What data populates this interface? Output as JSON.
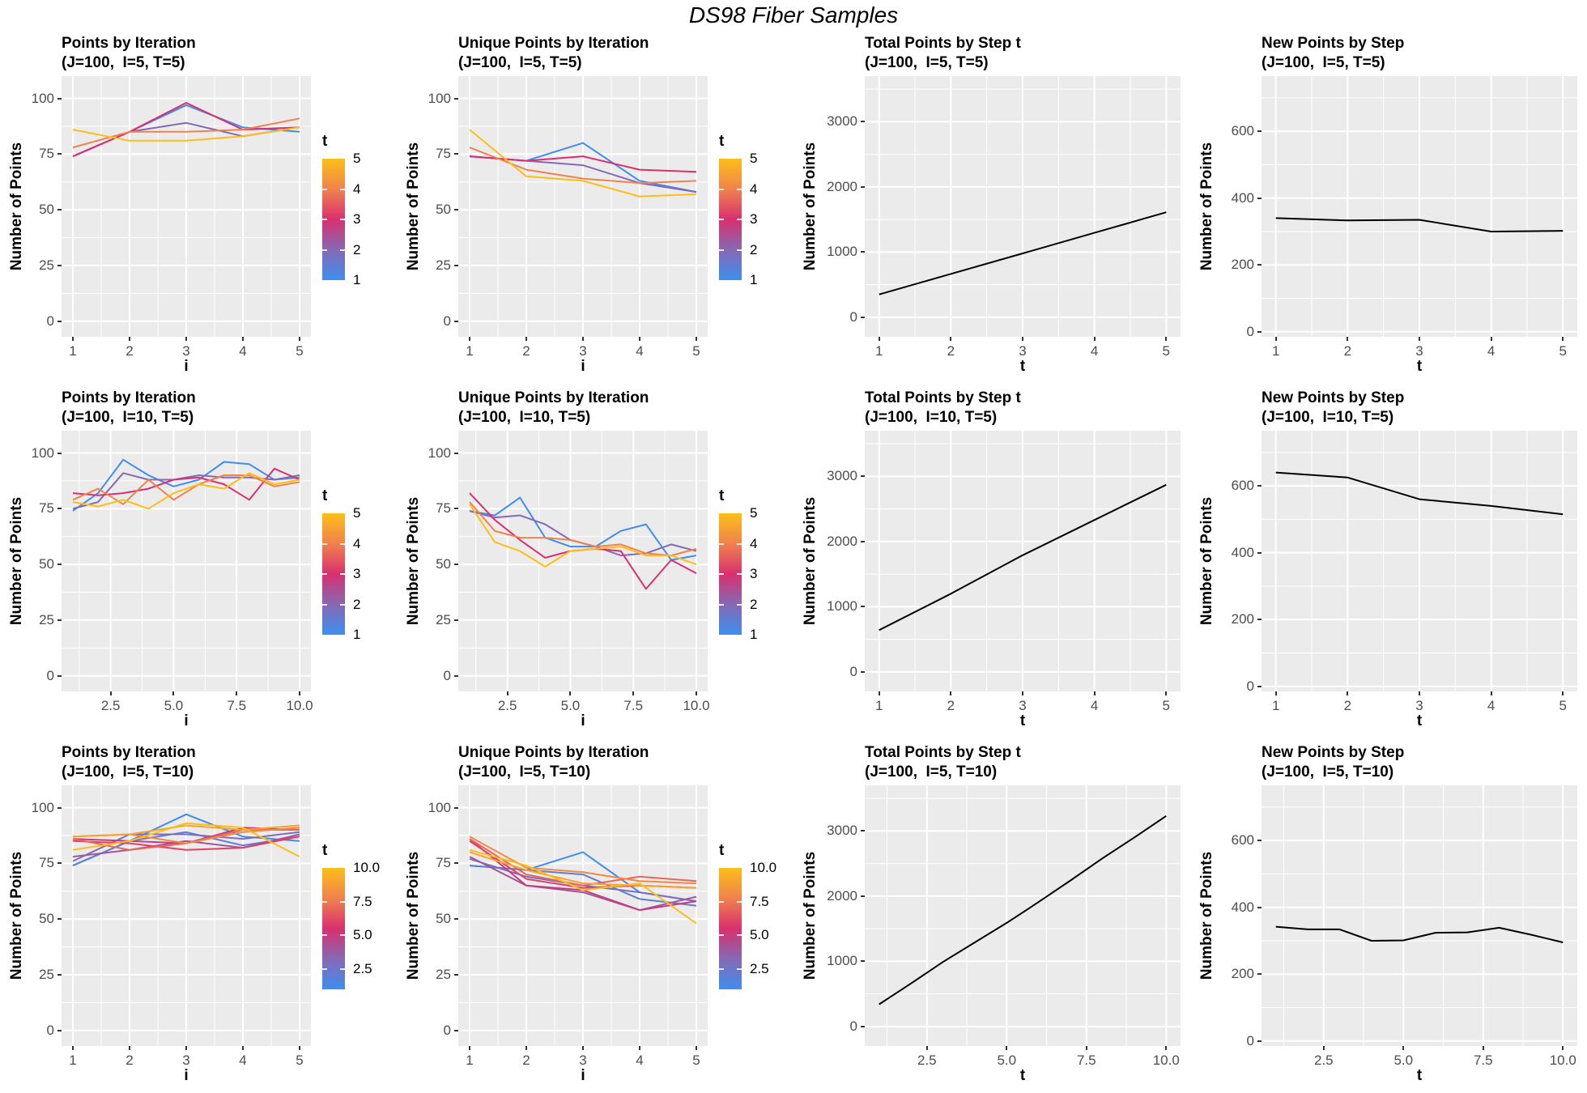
{
  "title": "DS98 Fiber Samples",
  "colors": {
    "panel_bg": "#EBEBEB",
    "grid": "#FFFFFF",
    "axis_text": "#4D4D4D",
    "tick_mark": "#333333",
    "black_line": "#000000",
    "gradient_stops": [
      "#3E8EF0",
      "#8569B4",
      "#D9306F",
      "#F0824D",
      "#FDBE18"
    ]
  },
  "chart_data": [
    {
      "type": "line",
      "title": "Points by Iteration",
      "subtitle": "(J=100,  I=5, T=5)",
      "xlabel": "i",
      "ylabel": "Number of Points",
      "x": [
        1,
        2,
        3,
        4,
        5
      ],
      "x_ticks": [
        1,
        2,
        3,
        4,
        5
      ],
      "x_tick_labels": [
        "1",
        "2",
        "3",
        "4",
        "5"
      ],
      "x_domain": [
        0.8,
        5.2
      ],
      "y_ticks": [
        0,
        25,
        50,
        75,
        100
      ],
      "y_tick_labels": [
        "0",
        "25",
        "50",
        "75",
        "100"
      ],
      "y_domain": [
        -7,
        110
      ],
      "legend": {
        "title": "t",
        "min": 1,
        "max": 5,
        "breaks": [
          1,
          2,
          3,
          4,
          5
        ],
        "labels": [
          "1",
          "2",
          "3",
          "4",
          "5"
        ]
      },
      "series": [
        {
          "t": 1,
          "values": [
            74,
            85,
            97,
            87,
            85
          ]
        },
        {
          "t": 2,
          "values": [
            74,
            85,
            89,
            83,
            87
          ]
        },
        {
          "t": 3,
          "values": [
            74,
            85,
            98,
            86,
            87
          ]
        },
        {
          "t": 4,
          "values": [
            78,
            85,
            85,
            86,
            91
          ]
        },
        {
          "t": 5,
          "values": [
            86,
            81,
            81,
            83,
            87
          ]
        }
      ]
    },
    {
      "type": "line",
      "title": "Unique Points by Iteration",
      "subtitle": "(J=100,  I=5, T=5)",
      "xlabel": "i",
      "ylabel": "Number of Points",
      "x": [
        1,
        2,
        3,
        4,
        5
      ],
      "x_ticks": [
        1,
        2,
        3,
        4,
        5
      ],
      "x_tick_labels": [
        "1",
        "2",
        "3",
        "4",
        "5"
      ],
      "x_domain": [
        0.8,
        5.2
      ],
      "y_ticks": [
        0,
        25,
        50,
        75,
        100
      ],
      "y_tick_labels": [
        "0",
        "25",
        "50",
        "75",
        "100"
      ],
      "y_domain": [
        -7,
        110
      ],
      "legend": {
        "title": "t",
        "min": 1,
        "max": 5,
        "breaks": [
          1,
          2,
          3,
          4,
          5
        ],
        "labels": [
          "1",
          "2",
          "3",
          "4",
          "5"
        ]
      },
      "series": [
        {
          "t": 1,
          "values": [
            74,
            72,
            80,
            63,
            58
          ]
        },
        {
          "t": 2,
          "values": [
            74,
            72,
            70,
            62,
            58
          ]
        },
        {
          "t": 3,
          "values": [
            74,
            72,
            74,
            68,
            67
          ]
        },
        {
          "t": 4,
          "values": [
            78,
            68,
            64,
            62,
            63
          ]
        },
        {
          "t": 5,
          "values": [
            86,
            65,
            63,
            56,
            57
          ]
        }
      ]
    },
    {
      "type": "line",
      "title": "Total Points by Step t",
      "subtitle": "(J=100,  I=5, T=5)",
      "xlabel": "t",
      "ylabel": "Number of Points",
      "x": [
        1,
        2,
        3,
        4,
        5
      ],
      "x_ticks": [
        1,
        2,
        3,
        4,
        5
      ],
      "x_tick_labels": [
        "1",
        "2",
        "3",
        "4",
        "5"
      ],
      "x_domain": [
        0.8,
        5.2
      ],
      "y_ticks": [
        0,
        1000,
        2000,
        3000
      ],
      "y_tick_labels": [
        "0",
        "1000",
        "2000",
        "3000"
      ],
      "y_domain": [
        -300,
        3700
      ],
      "legend": null,
      "series": [
        {
          "t": null,
          "values": [
            350,
            665,
            980,
            1295,
            1610
          ]
        }
      ]
    },
    {
      "type": "line",
      "title": "New Points by Step",
      "subtitle": "(J=100,  I=5, T=5)",
      "xlabel": "t",
      "ylabel": "Number of Points",
      "x": [
        1,
        2,
        3,
        4,
        5
      ],
      "x_ticks": [
        1,
        2,
        3,
        4,
        5
      ],
      "x_tick_labels": [
        "1",
        "2",
        "3",
        "4",
        "5"
      ],
      "x_domain": [
        0.8,
        5.2
      ],
      "y_ticks": [
        0,
        200,
        400,
        600
      ],
      "y_tick_labels": [
        "0",
        "200",
        "400",
        "600"
      ],
      "y_domain": [
        -15,
        765
      ],
      "legend": null,
      "series": [
        {
          "t": null,
          "values": [
            340,
            333,
            335,
            300,
            302
          ]
        }
      ]
    },
    {
      "type": "line",
      "title": "Points by Iteration",
      "subtitle": "(J=100,  I=10, T=5)",
      "xlabel": "i",
      "ylabel": "Number of Points",
      "x": [
        1,
        2,
        3,
        4,
        5,
        6,
        7,
        8,
        9,
        10
      ],
      "x_ticks": [
        2.5,
        5,
        7.5,
        10
      ],
      "x_tick_labels": [
        "2.5",
        "5.0",
        "7.5",
        "10.0"
      ],
      "x_domain": [
        0.55,
        10.45
      ],
      "y_ticks": [
        0,
        25,
        50,
        75,
        100
      ],
      "y_tick_labels": [
        "0",
        "25",
        "50",
        "75",
        "100"
      ],
      "y_domain": [
        -7,
        110
      ],
      "legend": {
        "title": "t",
        "min": 1,
        "max": 5,
        "breaks": [
          1,
          2,
          3,
          4,
          5
        ],
        "labels": [
          "1",
          "2",
          "3",
          "4",
          "5"
        ]
      },
      "series": [
        {
          "t": 1,
          "values": [
            74,
            82,
            97,
            90,
            85,
            88,
            96,
            95,
            88,
            89
          ]
        },
        {
          "t": 2,
          "values": [
            75,
            78,
            91,
            88,
            88,
            90,
            89,
            89,
            88,
            90
          ]
        },
        {
          "t": 3,
          "values": [
            82,
            81,
            82,
            84,
            88,
            89,
            86,
            79,
            93,
            88
          ]
        },
        {
          "t": 4,
          "values": [
            79,
            84,
            77,
            88,
            79,
            86,
            90,
            90,
            85,
            87
          ]
        },
        {
          "t": 5,
          "values": [
            78,
            76,
            79,
            75,
            82,
            86,
            84,
            91,
            86,
            88
          ]
        }
      ]
    },
    {
      "type": "line",
      "title": "Unique Points by Iteration",
      "subtitle": "(J=100,  I=10, T=5)",
      "xlabel": "i",
      "ylabel": "Number of Points",
      "x": [
        1,
        2,
        3,
        4,
        5,
        6,
        7,
        8,
        9,
        10
      ],
      "x_ticks": [
        2.5,
        5,
        7.5,
        10
      ],
      "x_tick_labels": [
        "2.5",
        "5.0",
        "7.5",
        "10.0"
      ],
      "x_domain": [
        0.55,
        10.45
      ],
      "y_ticks": [
        0,
        25,
        50,
        75,
        100
      ],
      "y_tick_labels": [
        "0",
        "25",
        "50",
        "75",
        "100"
      ],
      "y_domain": [
        -7,
        110
      ],
      "legend": {
        "title": "t",
        "min": 1,
        "max": 5,
        "breaks": [
          1,
          2,
          3,
          4,
          5
        ],
        "labels": [
          "1",
          "2",
          "3",
          "4",
          "5"
        ]
      },
      "series": [
        {
          "t": 1,
          "values": [
            74,
            72,
            80,
            62,
            58,
            58,
            65,
            68,
            52,
            54
          ]
        },
        {
          "t": 2,
          "values": [
            74,
            71,
            72,
            68,
            61,
            58,
            54,
            55,
            59,
            56
          ]
        },
        {
          "t": 3,
          "values": [
            82,
            70,
            61,
            53,
            56,
            57,
            56,
            39,
            52,
            46
          ]
        },
        {
          "t": 4,
          "values": [
            78,
            65,
            62,
            62,
            61,
            58,
            59,
            55,
            54,
            57
          ]
        },
        {
          "t": 5,
          "values": [
            77,
            60,
            56,
            49,
            56,
            57,
            58,
            54,
            54,
            50
          ]
        }
      ]
    },
    {
      "type": "line",
      "title": "Total Points by Step t",
      "subtitle": "(J=100,  I=10, T=5)",
      "xlabel": "t",
      "ylabel": "Number of Points",
      "x": [
        1,
        2,
        3,
        4,
        5
      ],
      "x_ticks": [
        1,
        2,
        3,
        4,
        5
      ],
      "x_tick_labels": [
        "1",
        "2",
        "3",
        "4",
        "5"
      ],
      "x_domain": [
        0.8,
        5.2
      ],
      "y_ticks": [
        0,
        1000,
        2000,
        3000
      ],
      "y_tick_labels": [
        "0",
        "1000",
        "2000",
        "3000"
      ],
      "y_domain": [
        -300,
        3700
      ],
      "legend": null,
      "series": [
        {
          "t": null,
          "values": [
            640,
            1200,
            1790,
            2330,
            2870
          ]
        }
      ]
    },
    {
      "type": "line",
      "title": "New Points by Step",
      "subtitle": "(J=100,  I=10, T=5)",
      "xlabel": "t",
      "ylabel": "Number of Points",
      "x": [
        1,
        2,
        3,
        4,
        5
      ],
      "x_ticks": [
        1,
        2,
        3,
        4,
        5
      ],
      "x_tick_labels": [
        "1",
        "2",
        "3",
        "4",
        "5"
      ],
      "x_domain": [
        0.8,
        5.2
      ],
      "y_ticks": [
        0,
        200,
        400,
        600
      ],
      "y_tick_labels": [
        "0",
        "200",
        "400",
        "600"
      ],
      "y_domain": [
        -15,
        765
      ],
      "legend": null,
      "series": [
        {
          "t": null,
          "values": [
            640,
            625,
            560,
            540,
            515
          ]
        }
      ]
    },
    {
      "type": "line",
      "title": "Points by Iteration",
      "subtitle": "(J=100,  I=5, T=10)",
      "xlabel": "i",
      "ylabel": "Number of Points",
      "x": [
        1,
        2,
        3,
        4,
        5
      ],
      "x_ticks": [
        1,
        2,
        3,
        4,
        5
      ],
      "x_tick_labels": [
        "1",
        "2",
        "3",
        "4",
        "5"
      ],
      "x_domain": [
        0.8,
        5.2
      ],
      "y_ticks": [
        0,
        25,
        50,
        75,
        100
      ],
      "y_tick_labels": [
        "0",
        "25",
        "50",
        "75",
        "100"
      ],
      "y_domain": [
        -7,
        110
      ],
      "legend": {
        "title": "t",
        "min": 1,
        "max": 10,
        "breaks": [
          2.5,
          5,
          7.5,
          10
        ],
        "labels": [
          "2.5",
          "5.0",
          "7.5",
          "10.0"
        ]
      },
      "series": [
        {
          "t": 1,
          "values": [
            74,
            85,
            97,
            87,
            85
          ]
        },
        {
          "t": 2,
          "values": [
            74,
            85,
            89,
            83,
            87
          ]
        },
        {
          "t": 3,
          "values": [
            76,
            88,
            88,
            86,
            89
          ]
        },
        {
          "t": 4,
          "values": [
            78,
            81,
            85,
            82,
            88
          ]
        },
        {
          "t": 5,
          "values": [
            86,
            85,
            84,
            91,
            90
          ]
        },
        {
          "t": 6,
          "values": [
            85,
            84,
            81,
            82,
            87
          ]
        },
        {
          "t": 7,
          "values": [
            86,
            81,
            84,
            90,
            90
          ]
        },
        {
          "t": 8,
          "values": [
            87,
            88,
            84,
            89,
            91
          ]
        },
        {
          "t": 9,
          "values": [
            87,
            88,
            92,
            90,
            92
          ]
        },
        {
          "t": 10,
          "values": [
            81,
            85,
            93,
            91,
            78
          ]
        }
      ]
    },
    {
      "type": "line",
      "title": "Unique Points by Iteration",
      "subtitle": "(J=100,  I=5, T=10)",
      "xlabel": "i",
      "ylabel": "Number of Points",
      "x": [
        1,
        2,
        3,
        4,
        5
      ],
      "x_ticks": [
        1,
        2,
        3,
        4,
        5
      ],
      "x_tick_labels": [
        "1",
        "2",
        "3",
        "4",
        "5"
      ],
      "x_domain": [
        0.8,
        5.2
      ],
      "y_ticks": [
        0,
        25,
        50,
        75,
        100
      ],
      "y_tick_labels": [
        "0",
        "25",
        "50",
        "75",
        "100"
      ],
      "y_domain": [
        -7,
        110
      ],
      "legend": {
        "title": "t",
        "min": 1,
        "max": 10,
        "breaks": [
          2.5,
          5,
          7.5,
          10
        ],
        "labels": [
          "2.5",
          "5.0",
          "7.5",
          "10.0"
        ]
      },
      "series": [
        {
          "t": 1,
          "values": [
            74,
            72,
            80,
            62,
            58
          ]
        },
        {
          "t": 2,
          "values": [
            74,
            72,
            70,
            59,
            56
          ]
        },
        {
          "t": 3,
          "values": [
            77,
            69,
            65,
            62,
            58
          ]
        },
        {
          "t": 4,
          "values": [
            78,
            65,
            62,
            54,
            60
          ]
        },
        {
          "t": 5,
          "values": [
            86,
            65,
            63,
            54,
            58
          ]
        },
        {
          "t": 6,
          "values": [
            85,
            68,
            64,
            65,
            64
          ]
        },
        {
          "t": 7,
          "values": [
            86,
            70,
            65,
            69,
            67
          ]
        },
        {
          "t": 8,
          "values": [
            87,
            73,
            71,
            67,
            66
          ]
        },
        {
          "t": 9,
          "values": [
            80,
            72,
            66,
            65,
            64
          ]
        },
        {
          "t": 10,
          "values": [
            81,
            74,
            63,
            66,
            48
          ]
        }
      ]
    },
    {
      "type": "line",
      "title": "Total Points by Step t",
      "subtitle": "(J=100,  I=5, T=10)",
      "xlabel": "t",
      "ylabel": "Number of Points",
      "x": [
        1,
        2,
        3,
        4,
        5,
        6,
        7,
        8,
        9,
        10
      ],
      "x_ticks": [
        2.5,
        5,
        7.5,
        10
      ],
      "x_tick_labels": [
        "2.5",
        "5.0",
        "7.5",
        "10.0"
      ],
      "x_domain": [
        0.55,
        10.45
      ],
      "y_ticks": [
        0,
        1000,
        2000,
        3000
      ],
      "y_tick_labels": [
        "0",
        "1000",
        "2000",
        "3000"
      ],
      "y_domain": [
        -300,
        3700
      ],
      "legend": null,
      "series": [
        {
          "t": null,
          "values": [
            340,
            660,
            990,
            1290,
            1590,
            1910,
            2240,
            2580,
            2900,
            3230
          ]
        }
      ]
    },
    {
      "type": "line",
      "title": "New Points by Step",
      "subtitle": "(J=100,  I=5, T=10)",
      "xlabel": "t",
      "ylabel": "Number of Points",
      "x": [
        1,
        2,
        3,
        4,
        5,
        6,
        7,
        8,
        9,
        10
      ],
      "x_ticks": [
        2.5,
        5,
        7.5,
        10
      ],
      "x_tick_labels": [
        "2.5",
        "5.0",
        "7.5",
        "10.0"
      ],
      "x_domain": [
        0.55,
        10.45
      ],
      "y_ticks": [
        0,
        200,
        400,
        600
      ],
      "y_tick_labels": [
        "0",
        "200",
        "400",
        "600"
      ],
      "y_domain": [
        -15,
        765
      ],
      "legend": null,
      "series": [
        {
          "t": null,
          "values": [
            342,
            334,
            334,
            300,
            301,
            324,
            325,
            339,
            318,
            295
          ]
        }
      ]
    }
  ]
}
